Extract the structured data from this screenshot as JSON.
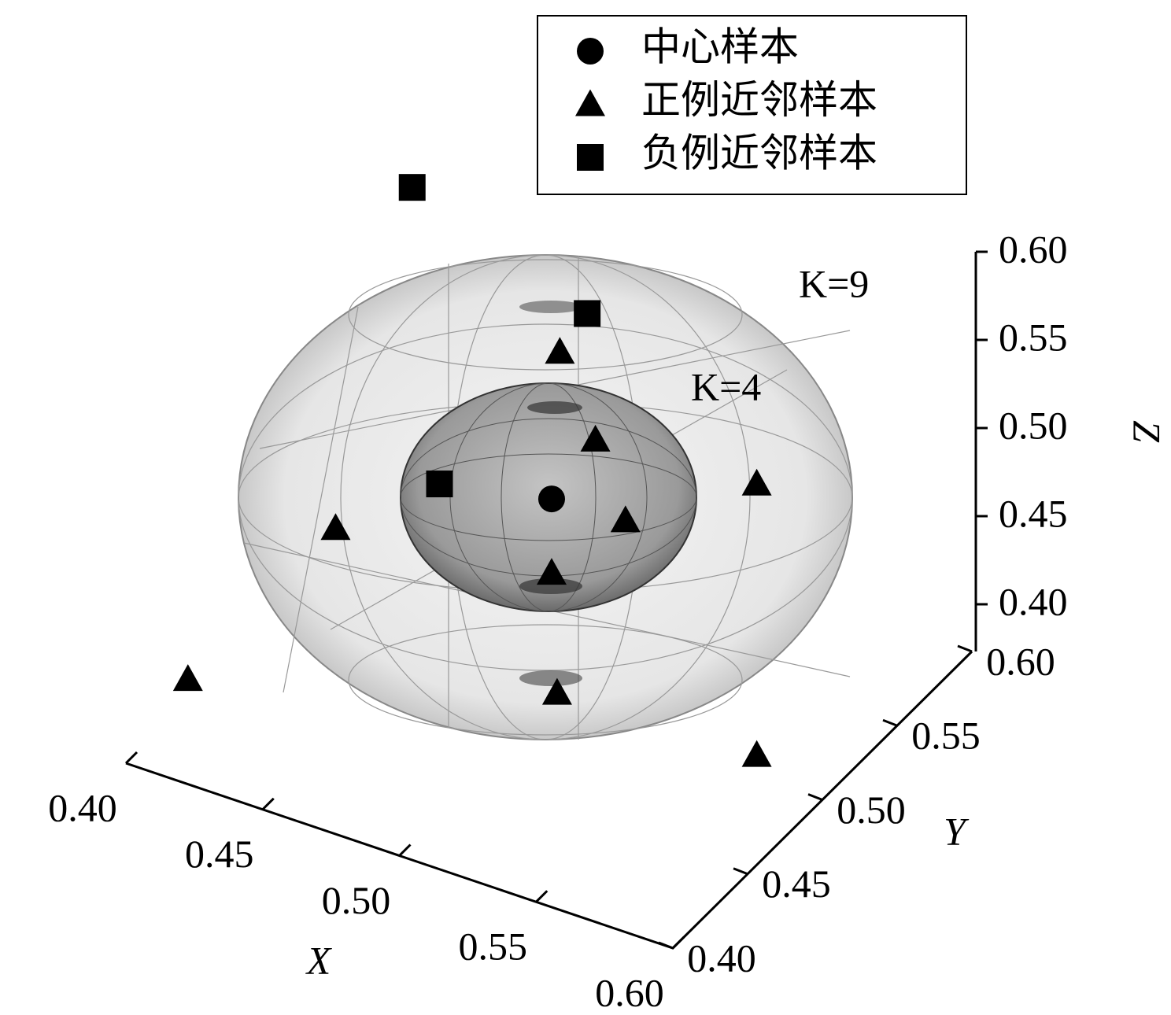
{
  "chart_data": {
    "type": "scatter3d",
    "xlabel": "X",
    "ylabel": "Y",
    "zlabel": "Z",
    "annotations": [
      "K=9",
      "K=4"
    ],
    "legend": "upper right",
    "xlim": [
      0.4,
      0.6
    ],
    "ylim": [
      0.4,
      0.6
    ],
    "zlim": [
      0.4,
      0.6
    ],
    "xticks": [
      {
        "value": 0.4,
        "label": "0.40"
      },
      0.45,
      {
        "value": 0.5,
        "label": "0.50"
      },
      0.55,
      {
        "value": 0.6,
        "label": "0.60"
      }
    ],
    "yticks": [
      {
        "value": 0.4,
        "label": "0.40"
      },
      0.45,
      {
        "value": 0.5,
        "label": "0.50"
      },
      0.55,
      {
        "value": 0.6,
        "label": "0.60"
      }
    ],
    "zticks": [
      {
        "value": 0.4,
        "label": "0.40"
      },
      0.45,
      {
        "value": 0.5,
        "label": "0.50"
      },
      0.55,
      {
        "value": 0.6,
        "label": "0.60"
      }
    ],
    "series": [
      {
        "name": "中心样本",
        "marker": "circle",
        "color": "#000000",
        "x": [
          0.501
        ],
        "y": [
          0.5
        ],
        "z": [
          0.492
        ]
      },
      {
        "name": "正例近邻样本",
        "marker": "triangle",
        "color": "#000000",
        "x": [
          0.504,
          0.517,
          0.576,
          0.422,
          0.528,
          0.501,
          0.503,
          0.368,
          0.576
        ],
        "y": [
          0.5,
          0.5,
          0.5,
          0.5,
          0.5,
          0.5,
          0.5,
          0.5,
          0.5
        ],
        "z": [
          0.577,
          0.534,
          0.54,
          0.434,
          0.494,
          0.45,
          0.383,
          0.32,
          0.386
        ]
      },
      {
        "name": "负例近邻样本",
        "marker": "square",
        "color": "#000000",
        "x": [
          0.45,
          0.514,
          0.46
        ],
        "y": [
          0.5,
          0.5,
          0.5
        ],
        "z": [
          0.642,
          0.604,
          0.479
        ]
      }
    ]
  }
}
